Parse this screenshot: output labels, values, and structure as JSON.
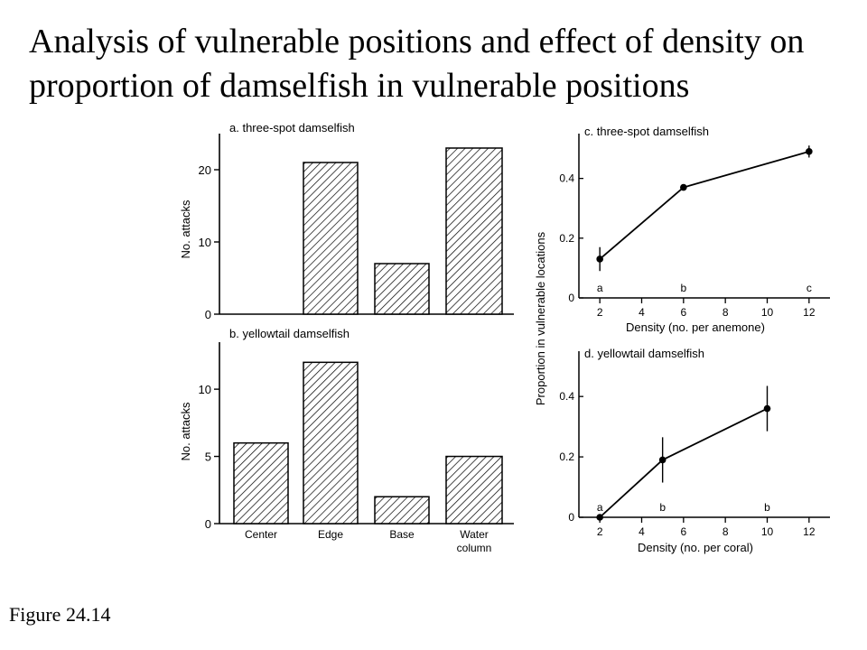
{
  "slide": {
    "title": "Analysis of vulnerable positions and effect of density on proportion of damselfish in vulnerable positions",
    "caption": "Figure 24.14"
  },
  "colors": {
    "ink": "#000000",
    "background": "#ffffff",
    "bar_fill": "hatched"
  },
  "chart_data": [
    {
      "panel": "a",
      "type": "bar",
      "title": "a. three-spot damselfish",
      "ylabel": "No. attacks",
      "ylim": [
        0,
        25
      ],
      "yticks": [
        0,
        10,
        20
      ],
      "categories": [
        "Center",
        "Edge",
        "Base",
        "Water column"
      ],
      "values": [
        0,
        21,
        7,
        23
      ],
      "category_labels_shown": false
    },
    {
      "panel": "b",
      "type": "bar",
      "title": "b. yellowtail damselfish",
      "ylabel": "No. attacks",
      "ylim": [
        0,
        13.5
      ],
      "yticks": [
        0,
        5,
        10
      ],
      "categories": [
        "Center",
        "Edge",
        "Base",
        "Water column"
      ],
      "values": [
        6,
        12,
        2,
        5
      ],
      "category_labels_shown": true
    },
    {
      "panel": "c",
      "type": "line",
      "title": "c. three-spot damselfish",
      "xlabel": "Density (no. per anemone)",
      "ylabel": "Proportion in vulnerable locations",
      "xlim": [
        1,
        13
      ],
      "ylim": [
        0,
        0.55
      ],
      "xticks": [
        2,
        4,
        6,
        8,
        10,
        12
      ],
      "yticks": [
        0,
        0.2,
        0.4
      ],
      "ytick_labels": [
        "0",
        "0.2",
        "0.4"
      ],
      "x": [
        2,
        6,
        12
      ],
      "y": [
        0.13,
        0.37,
        0.49
      ],
      "err": [
        0.04,
        0.01,
        0.02
      ],
      "letters": [
        "a",
        "b",
        "c"
      ]
    },
    {
      "panel": "d",
      "type": "line",
      "title": "d. yellowtail damselfish",
      "xlabel": "Density (no. per coral)",
      "ylabel": "",
      "xlim": [
        1,
        13
      ],
      "ylim": [
        0,
        0.55
      ],
      "xticks": [
        2,
        4,
        6,
        8,
        10,
        12
      ],
      "yticks": [
        0,
        0.2,
        0.4
      ],
      "ytick_labels": [
        "0",
        "0.2",
        "0.4"
      ],
      "x": [
        2,
        5,
        10
      ],
      "y": [
        0,
        0.19,
        0.36
      ],
      "err": [
        0,
        0.075,
        0.075
      ],
      "letters": [
        "a",
        "b",
        "b"
      ]
    }
  ]
}
